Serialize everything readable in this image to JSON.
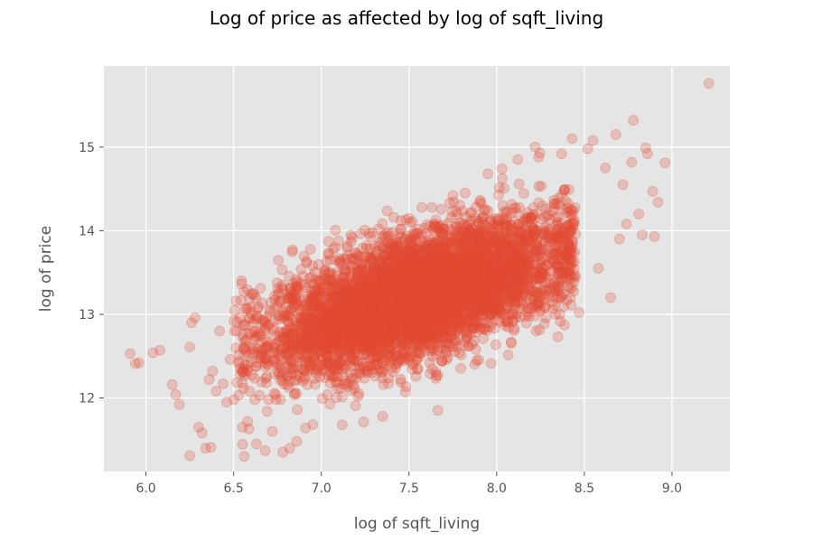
{
  "chart_data": {
    "type": "scatter",
    "title": "Log of price as affected by log of sqft_living",
    "xlabel": "log of sqft_living",
    "ylabel": "log of price",
    "xlim": [
      5.76,
      9.33
    ],
    "ylim": [
      11.12,
      15.97
    ],
    "xticks": [
      6.0,
      6.5,
      7.0,
      7.5,
      8.0,
      8.5,
      9.0
    ],
    "xtick_labels": [
      "6.0",
      "6.5",
      "7.0",
      "7.5",
      "8.0",
      "8.5",
      "9.0"
    ],
    "yticks": [
      12,
      13,
      14,
      15
    ],
    "ytick_labels": [
      "12",
      "13",
      "14",
      "15"
    ],
    "grid": true,
    "background": "#e5e5e5",
    "point_color": "#e24a33",
    "point_alpha": 0.25,
    "points": [
      [
        5.91,
        12.53
      ],
      [
        5.94,
        12.41
      ],
      [
        5.96,
        12.42
      ],
      [
        6.04,
        12.54
      ],
      [
        6.08,
        12.57
      ],
      [
        6.15,
        12.16
      ],
      [
        6.17,
        12.04
      ],
      [
        6.19,
        11.92
      ],
      [
        6.25,
        12.61
      ],
      [
        6.26,
        12.9
      ],
      [
        6.28,
        12.96
      ],
      [
        6.25,
        11.31
      ],
      [
        6.3,
        11.65
      ],
      [
        6.32,
        11.58
      ],
      [
        6.34,
        11.4
      ],
      [
        6.37,
        11.41
      ],
      [
        6.36,
        12.22
      ],
      [
        6.38,
        12.32
      ],
      [
        6.4,
        12.08
      ],
      [
        6.42,
        12.8
      ],
      [
        6.44,
        12.17
      ],
      [
        6.46,
        11.95
      ],
      [
        6.48,
        12.46
      ],
      [
        6.52,
        12.91
      ],
      [
        6.55,
        11.65
      ],
      [
        6.56,
        11.3
      ],
      [
        6.58,
        11.72
      ],
      [
        6.61,
        13.25
      ],
      [
        6.63,
        11.45
      ],
      [
        6.68,
        11.37
      ],
      [
        6.72,
        11.6
      ],
      [
        6.78,
        11.35
      ],
      [
        6.82,
        11.4
      ],
      [
        6.86,
        11.48
      ],
      [
        6.91,
        11.64
      ],
      [
        6.95,
        13.58
      ],
      [
        7.05,
        13.65
      ],
      [
        7.12,
        11.68
      ],
      [
        7.17,
        13.87
      ],
      [
        7.28,
        13.93
      ],
      [
        7.35,
        11.78
      ],
      [
        7.45,
        14.02
      ],
      [
        7.52,
        14.11
      ],
      [
        7.63,
        14.28
      ],
      [
        7.75,
        14.42
      ],
      [
        7.82,
        14.45
      ],
      [
        7.95,
        14.68
      ],
      [
        8.03,
        14.74
      ],
      [
        8.12,
        14.85
      ],
      [
        8.22,
        15.0
      ],
      [
        8.24,
        14.88
      ],
      [
        8.3,
        13.62
      ],
      [
        8.37,
        14.92
      ],
      [
        8.43,
        15.1
      ],
      [
        8.47,
        13.02
      ],
      [
        8.52,
        14.98
      ],
      [
        8.55,
        15.08
      ],
      [
        8.58,
        13.55
      ],
      [
        8.62,
        14.75
      ],
      [
        8.65,
        13.2
      ],
      [
        8.68,
        15.15
      ],
      [
        8.7,
        13.9
      ],
      [
        8.72,
        14.55
      ],
      [
        8.74,
        14.08
      ],
      [
        8.77,
        14.82
      ],
      [
        8.78,
        15.32
      ],
      [
        8.81,
        14.2
      ],
      [
        8.83,
        13.95
      ],
      [
        8.85,
        14.99
      ],
      [
        8.86,
        14.92
      ],
      [
        8.89,
        14.47
      ],
      [
        8.9,
        13.93
      ],
      [
        8.92,
        14.34
      ],
      [
        8.96,
        14.81
      ],
      [
        9.21,
        15.76
      ]
    ],
    "dense_region": {
      "description_x_range": [
        6.5,
        8.45
      ],
      "trend": {
        "x0": 6.5,
        "y0": 12.55,
        "x1": 8.4,
        "y1": 13.75
      },
      "spread_sd": 0.35,
      "count": 6000
    }
  }
}
